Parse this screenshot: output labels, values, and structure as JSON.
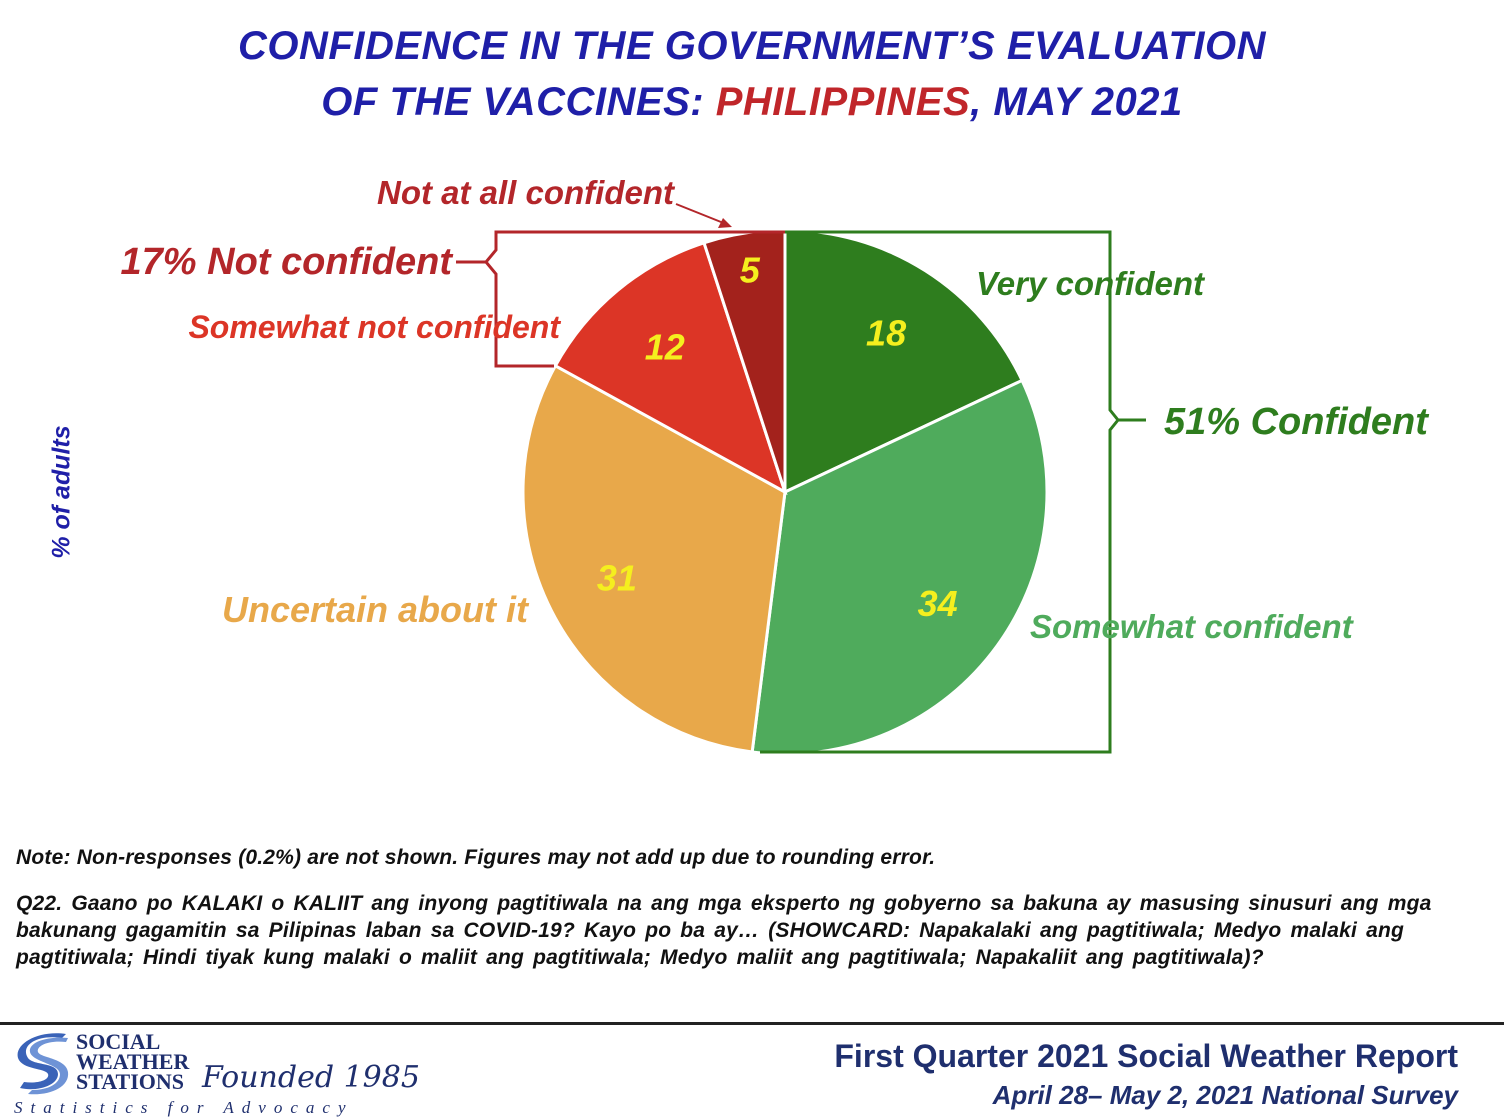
{
  "title": {
    "line1": "CONFIDENCE IN THE GOVERNMENT’S EVALUATION",
    "line2_prefix": "OF THE VACCINES: ",
    "line2_highlight": "PHILIPPINES",
    "line2_suffix": ", MAY 2021"
  },
  "chart_data": {
    "type": "pie",
    "ylabel": "% of adults",
    "slices": [
      {
        "label": "Very confident",
        "value": 18,
        "color": "#2e7d1e"
      },
      {
        "label": "Somewhat confident",
        "value": 34,
        "color": "#4fab5c"
      },
      {
        "label": "Uncertain about it",
        "value": 31,
        "color": "#e8a84a"
      },
      {
        "label": "Somewhat not confident",
        "value": 12,
        "color": "#dc3526"
      },
      {
        "label": "Not at all confident",
        "value": 5,
        "color": "#a3221c"
      }
    ],
    "groups": [
      {
        "label": "51% Confident",
        "color": "#2e7d1e"
      },
      {
        "label": "17% Not confident",
        "color": "#b3262a"
      }
    ],
    "value_label_color": "#f5ef1e",
    "label_colors": {
      "very": "#2e7d1e",
      "somewhat": "#4fab5c",
      "uncertain": "#e8a84a",
      "somewhat_not": "#dc3526",
      "not_at_all": "#b3262a"
    }
  },
  "notes": {
    "note": "Note: Non-responses (0.2%) are not shown. Figures may not add up due to rounding error.",
    "question": "Q22. Gaano po KALAKI o KALIIT ang inyong pagtitiwala na ang mga eksperto ng gobyerno sa bakuna ay masusing sinusuri ang mga bakunang gagamitin sa Pilipinas laban sa COVID-19? Kayo po ba ay… (SHOWCARD: Napakalaki ang pagtitiwala; Medyo malaki ang pagtitiwala; Hindi tiyak kung malaki o maliit ang pagtitiwala; Medyo maliit ang pagtitiwala; Napakaliit ang pagtitiwala)?"
  },
  "footer": {
    "logo_line1": "SOCIAL",
    "logo_line2": "WEATHER",
    "logo_line3": "STATIONS",
    "founded": "Founded 1985",
    "tagline": "Statistics for Advocacy",
    "report_title": "First Quarter 2021 Social Weather Report",
    "report_sub": "April 28– May 2, 2021 National Survey"
  }
}
